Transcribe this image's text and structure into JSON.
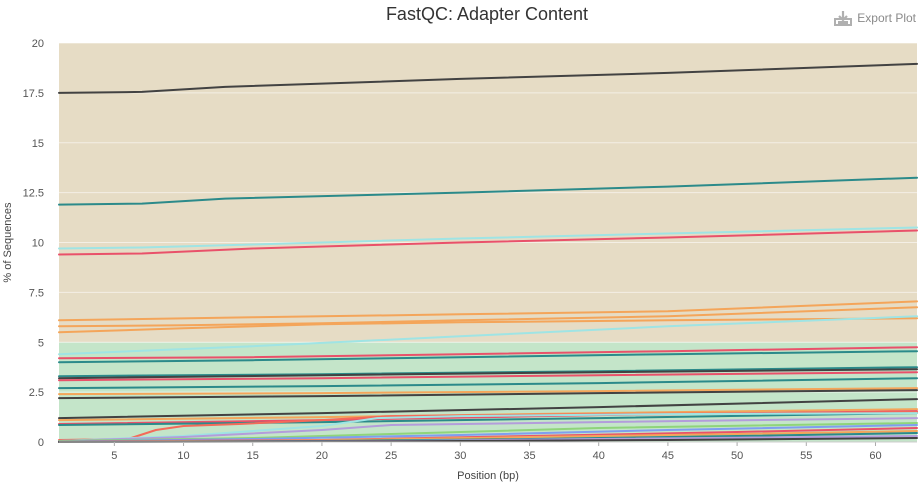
{
  "page": {
    "title": "FastQC: Adapter Content",
    "export_label": "Export Plot",
    "export_icon": "download-icon"
  },
  "chart_data": {
    "type": "line",
    "title": "FastQC: Adapter Content",
    "xlabel": "Position (bp)",
    "ylabel": "% of Sequences",
    "xlim": [
      1,
      63
    ],
    "ylim": [
      0,
      20
    ],
    "x_ticks": [
      "5",
      "10",
      "15",
      "20",
      "25",
      "30",
      "35",
      "40",
      "45",
      "50",
      "55",
      "60"
    ],
    "y_ticks": [
      "0",
      "2.5",
      "5",
      "7.5",
      "10",
      "12.5",
      "15",
      "17.5",
      "20"
    ],
    "grid": true,
    "background_bands": [
      {
        "from": 0,
        "to": 5,
        "color": "#c4e5c9"
      },
      {
        "from": 5,
        "to": 20,
        "color": "#e6dcc5"
      }
    ],
    "series": [
      {
        "color": "#424242",
        "values": [
          [
            1,
            17.5
          ],
          [
            7,
            17.55
          ],
          [
            13,
            17.8
          ],
          [
            30,
            18.2
          ],
          [
            45,
            18.5
          ],
          [
            63,
            18.95
          ]
        ]
      },
      {
        "color": "#2b8a8a",
        "values": [
          [
            1,
            11.9
          ],
          [
            7,
            11.95
          ],
          [
            13,
            12.2
          ],
          [
            30,
            12.5
          ],
          [
            45,
            12.8
          ],
          [
            63,
            13.25
          ]
        ]
      },
      {
        "color": "#9fe4e4",
        "values": [
          [
            1,
            9.7
          ],
          [
            7,
            9.75
          ],
          [
            15,
            9.9
          ],
          [
            30,
            10.2
          ],
          [
            45,
            10.45
          ],
          [
            63,
            10.75
          ]
        ]
      },
      {
        "color": "#e9516a",
        "values": [
          [
            1,
            9.4
          ],
          [
            7,
            9.45
          ],
          [
            15,
            9.7
          ],
          [
            30,
            10
          ],
          [
            45,
            10.25
          ],
          [
            63,
            10.6
          ]
        ]
      },
      {
        "color": "#f4a55a",
        "values": [
          [
            1,
            6.1
          ],
          [
            15,
            6.25
          ],
          [
            30,
            6.4
          ],
          [
            45,
            6.55
          ],
          [
            63,
            7.05
          ]
        ]
      },
      {
        "color": "#f4a55a",
        "values": [
          [
            1,
            5.8
          ],
          [
            10,
            5.85
          ],
          [
            20,
            5.95
          ],
          [
            30,
            6.1
          ],
          [
            45,
            6.3
          ],
          [
            63,
            6.75
          ]
        ]
      },
      {
        "color": "#f4a55a",
        "values": [
          [
            1,
            5.5
          ],
          [
            10,
            5.7
          ],
          [
            20,
            5.9
          ],
          [
            30,
            6
          ],
          [
            45,
            6.1
          ],
          [
            63,
            6.2
          ]
        ]
      },
      {
        "color": "#9fe4e4",
        "values": [
          [
            1,
            4.4
          ],
          [
            15,
            4.8
          ],
          [
            30,
            5.3
          ],
          [
            45,
            5.8
          ],
          [
            63,
            6.3
          ]
        ]
      },
      {
        "color": "#e9516a",
        "values": [
          [
            1,
            4.2
          ],
          [
            15,
            4.25
          ],
          [
            30,
            4.4
          ],
          [
            45,
            4.55
          ],
          [
            63,
            4.75
          ]
        ]
      },
      {
        "color": "#2b8a8a",
        "values": [
          [
            1,
            4.0
          ],
          [
            15,
            4.1
          ],
          [
            30,
            4.25
          ],
          [
            45,
            4.4
          ],
          [
            63,
            4.55
          ]
        ]
      },
      {
        "color": "#2b8a8a",
        "values": [
          [
            1,
            3.3
          ],
          [
            20,
            3.4
          ],
          [
            40,
            3.55
          ],
          [
            63,
            3.75
          ]
        ]
      },
      {
        "color": "#424242",
        "values": [
          [
            1,
            3.2
          ],
          [
            20,
            3.35
          ],
          [
            40,
            3.5
          ],
          [
            63,
            3.65
          ]
        ]
      },
      {
        "color": "#e9516a",
        "values": [
          [
            1,
            3.1
          ],
          [
            20,
            3.2
          ],
          [
            40,
            3.35
          ],
          [
            63,
            3.5
          ]
        ]
      },
      {
        "color": "#2b8a8a",
        "values": [
          [
            1,
            2.7
          ],
          [
            20,
            2.8
          ],
          [
            40,
            2.95
          ],
          [
            63,
            3.2
          ]
        ]
      },
      {
        "color": "#f4a55a",
        "values": [
          [
            1,
            2.4
          ],
          [
            20,
            2.45
          ],
          [
            40,
            2.55
          ],
          [
            63,
            2.7
          ]
        ]
      },
      {
        "color": "#424242",
        "values": [
          [
            1,
            2.2
          ],
          [
            20,
            2.3
          ],
          [
            40,
            2.45
          ],
          [
            63,
            2.6
          ]
        ]
      },
      {
        "color": "#424242",
        "values": [
          [
            1,
            1.2
          ],
          [
            20,
            1.45
          ],
          [
            40,
            1.75
          ],
          [
            63,
            2.15
          ]
        ]
      },
      {
        "color": "#f4a55a",
        "values": [
          [
            1,
            1.1
          ],
          [
            20,
            1.25
          ],
          [
            40,
            1.45
          ],
          [
            63,
            1.65
          ]
        ]
      },
      {
        "color": "#e9516a",
        "values": [
          [
            1,
            0.9
          ],
          [
            20,
            1.1
          ],
          [
            40,
            1.35
          ],
          [
            63,
            1.55
          ]
        ]
      },
      {
        "color": "#2b8a8a",
        "values": [
          [
            1,
            0.85
          ],
          [
            20,
            1.0
          ],
          [
            40,
            1.2
          ],
          [
            63,
            1.45
          ]
        ]
      },
      {
        "color": "#f46a5a",
        "values": [
          [
            1,
            0.1
          ],
          [
            6,
            0.15
          ],
          [
            8,
            0.6
          ],
          [
            10,
            0.8
          ],
          [
            14,
            0.9
          ],
          [
            20,
            1.1
          ],
          [
            25,
            1.3
          ],
          [
            40,
            1.4
          ],
          [
            63,
            1.5
          ]
        ]
      },
      {
        "color": "#9fe4e4",
        "values": [
          [
            1,
            0.05
          ],
          [
            10,
            0.3
          ],
          [
            20,
            0.8
          ],
          [
            24,
            1.2
          ],
          [
            30,
            1.3
          ],
          [
            45,
            1.4
          ],
          [
            63,
            1.45
          ]
        ]
      },
      {
        "color": "#b39ddb",
        "values": [
          [
            1,
            0.05
          ],
          [
            10,
            0.25
          ],
          [
            20,
            0.6
          ],
          [
            25,
            0.85
          ],
          [
            40,
            1.0
          ],
          [
            63,
            1.2
          ]
        ]
      },
      {
        "color": "#8fd47a",
        "values": [
          [
            1,
            0.05
          ],
          [
            15,
            0.2
          ],
          [
            25,
            0.4
          ],
          [
            40,
            0.7
          ],
          [
            63,
            0.95
          ]
        ]
      },
      {
        "color": "#7f9ef0",
        "values": [
          [
            1,
            0.02
          ],
          [
            15,
            0.15
          ],
          [
            30,
            0.35
          ],
          [
            45,
            0.6
          ],
          [
            63,
            0.85
          ]
        ]
      },
      {
        "color": "#e9516a",
        "values": [
          [
            1,
            0.02
          ],
          [
            20,
            0.1
          ],
          [
            35,
            0.3
          ],
          [
            50,
            0.5
          ],
          [
            63,
            0.7
          ]
        ]
      },
      {
        "color": "#f4a55a",
        "values": [
          [
            1,
            0.02
          ],
          [
            20,
            0.08
          ],
          [
            35,
            0.25
          ],
          [
            50,
            0.4
          ],
          [
            63,
            0.55
          ]
        ]
      },
      {
        "color": "#2b8a8a",
        "values": [
          [
            1,
            0.01
          ],
          [
            20,
            0.05
          ],
          [
            35,
            0.15
          ],
          [
            50,
            0.3
          ],
          [
            63,
            0.45
          ]
        ]
      },
      {
        "color": "#b39ddb",
        "values": [
          [
            1,
            0.01
          ],
          [
            25,
            0.05
          ],
          [
            40,
            0.15
          ],
          [
            63,
            0.3
          ]
        ]
      },
      {
        "color": "#424242",
        "values": [
          [
            1,
            0.0
          ],
          [
            25,
            0.03
          ],
          [
            45,
            0.1
          ],
          [
            63,
            0.2
          ]
        ]
      }
    ]
  }
}
